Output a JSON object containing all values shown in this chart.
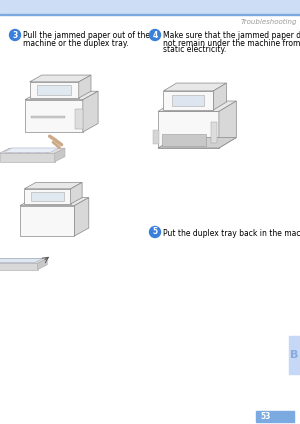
{
  "page_bg": "#ffffff",
  "header_bar_color": "#ccddf5",
  "header_line_color": "#7aaae0",
  "header_text": "Troubleshooting",
  "header_text_color": "#999999",
  "header_text_size": 5.0,
  "step3_num": "3",
  "step3_text_line1": "Pull the jammed paper out of the",
  "step3_text_line2": "machine or the duplex tray.",
  "step4_num": "4",
  "step4_text_line1": "Make sure that the jammed paper does",
  "step4_text_line2": "not remain under the machine from",
  "step4_text_line3": "static electricity.",
  "step5_num": "5",
  "step5_text": "Put the duplex tray back in the machine.",
  "step_circle_color": "#3a80db",
  "step_text_color": "#000000",
  "step_num_color": "#ffffff",
  "step_font_size": 5.5,
  "step_num_font_size": 5.5,
  "sidebar_color": "#c5d8f5",
  "sidebar_letter": "B",
  "sidebar_letter_color": "#88aadd",
  "page_num": "53",
  "page_num_bg": "#7aaae0",
  "page_num_color": "#ffffff",
  "page_num_font_size": 5.5,
  "printer_edge": "#888888",
  "printer_face_light": "#f8f8f8",
  "printer_face_mid": "#e8e8e8",
  "printer_face_dark": "#d8d8d8",
  "tray_face": "#e0e0e0",
  "tray_edge": "#aaaaaa"
}
